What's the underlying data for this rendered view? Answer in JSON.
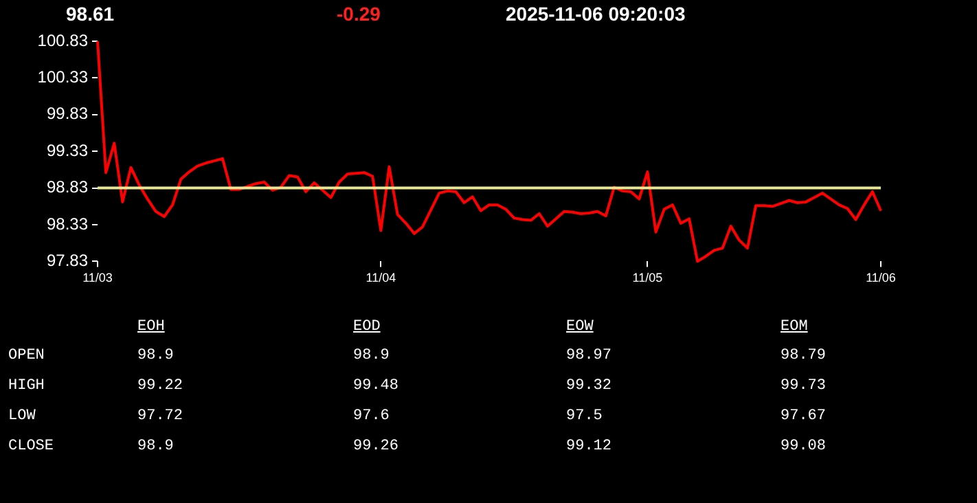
{
  "chart_data": {
    "type": "line",
    "title": "98.61",
    "subtitle": "-0.29",
    "annotations": [
      "2025-11-06 09:20:03",
      "EOH",
      "EOD",
      "EOW",
      "EOM",
      "OPEN",
      "98.9",
      "98.9",
      "98.97",
      "98.79",
      "HIGH",
      "99.22",
      "99.48",
      "99.32",
      "99.73",
      "LOW",
      "97.72",
      "97.6",
      "97.5",
      "97.67",
      "CLOSE",
      "98.9",
      "99.26",
      "99.12",
      "99.08"
    ],
    "categories": [
      "11/03",
      null,
      null,
      null,
      null,
      null,
      null,
      null,
      null,
      null,
      null,
      null,
      null,
      null,
      null,
      null,
      null,
      null,
      null,
      null,
      null,
      null,
      null,
      null,
      null,
      null,
      null,
      null,
      null,
      null,
      null,
      null,
      null,
      null,
      "11/04",
      null,
      null,
      null,
      null,
      null,
      null,
      null,
      null,
      null,
      null,
      null,
      null,
      null,
      null,
      null,
      null,
      null,
      null,
      null,
      null,
      null,
      null,
      null,
      null,
      null,
      null,
      null,
      null,
      null,
      null,
      null,
      "11/05",
      null,
      null,
      null,
      null,
      null,
      null,
      null,
      null,
      null,
      null,
      null,
      null,
      null,
      null,
      null,
      null,
      null,
      null,
      null,
      null,
      null,
      null,
      null,
      null,
      null,
      null,
      null,
      "11/06"
    ],
    "values": [
      100.83,
      99.04,
      99.44,
      98.64,
      99.11,
      98.87,
      98.68,
      98.51,
      98.44,
      98.6,
      98.95,
      99.05,
      99.13,
      99.17,
      99.2,
      99.23,
      98.81,
      98.81,
      98.85,
      98.89,
      98.91,
      98.8,
      98.84,
      99.0,
      98.98,
      98.78,
      98.9,
      98.8,
      98.7,
      98.91,
      99.02,
      99.03,
      99.04,
      98.99,
      98.25,
      99.12,
      98.47,
      98.35,
      98.21,
      98.3,
      98.53,
      98.76,
      98.79,
      98.78,
      98.63,
      98.71,
      98.52,
      98.6,
      98.6,
      98.54,
      98.42,
      98.4,
      98.39,
      98.48,
      98.31,
      98.41,
      98.51,
      98.5,
      98.48,
      98.49,
      98.51,
      98.45,
      98.84,
      98.79,
      98.78,
      98.68,
      99.05,
      98.23,
      98.54,
      98.6,
      98.35,
      98.41,
      97.83,
      97.9,
      97.98,
      98.01,
      98.31,
      98.12,
      98.01,
      98.59,
      98.59,
      98.58,
      98.62,
      98.66,
      98.63,
      98.64,
      98.7,
      98.76,
      98.68,
      98.6,
      98.55,
      98.4,
      98.6,
      98.78,
      98.52
    ],
    "color": "#ff0000",
    "ylim": [
      97.83,
      100.83
    ],
    "yticks": [
      97.83,
      98.33,
      98.83,
      99.33,
      99.83,
      100.33,
      100.83
    ],
    "ref_lines": [
      {
        "axis": "y",
        "value": 98.83,
        "color": "#e8e890"
      }
    ],
    "grid": false,
    "legend": false,
    "marker": "none",
    "line_style": "solid"
  }
}
